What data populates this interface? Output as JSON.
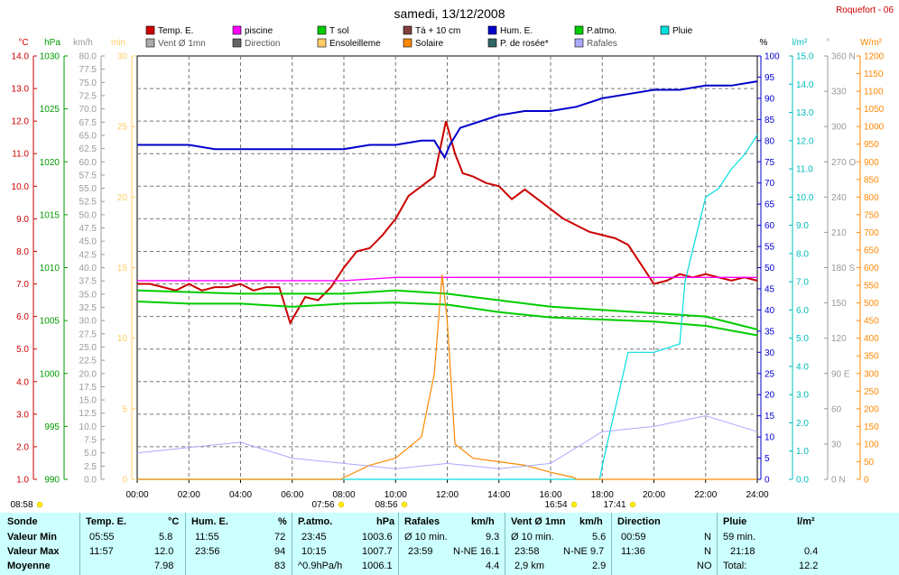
{
  "title": "samedi, 13/12/2008",
  "station": "Roquefort - 06",
  "legend": [
    {
      "label": "Temp. E.",
      "color": "#cc0000"
    },
    {
      "label": "piscine",
      "color": "#ff00ff"
    },
    {
      "label": "T sol",
      "color": "#00cc00"
    },
    {
      "label": "Tà + 10 cm",
      "color": "#804040"
    },
    {
      "label": "Hum. E.",
      "color": "#0000cc"
    },
    {
      "label": "P.atmo.",
      "color": "#00cc00"
    },
    {
      "label": "Pluie",
      "color": "#00dddd"
    },
    {
      "label": "Vent Ø 1mn",
      "color": "#aaaaaa"
    },
    {
      "label": "Direction",
      "color": "#666666"
    },
    {
      "label": "Ensoleilleme",
      "color": "#ffcc66"
    },
    {
      "label": "Solaire",
      "color": "#ff8800"
    },
    {
      "label": "P. de rosée*",
      "color": "#336666"
    },
    {
      "label": "Rafales",
      "color": "#aaaaff"
    }
  ],
  "axis_units": {
    "temp": "°C",
    "press": "hPa",
    "wind": "km/h",
    "min": "min",
    "hum": "%",
    "rain": "l/m²",
    "dir": "°",
    "solar": "W/m²"
  },
  "axis_colors": {
    "temp": "#cc0000",
    "press": "#009900",
    "wind": "#999999",
    "min": "#ffcc66",
    "hum": "#0000cc",
    "rain": "#00bbbb",
    "dir": "#999999",
    "solar": "#ff8800"
  },
  "axis_ticks": {
    "temp": [
      "14.0",
      "13.0",
      "12.0",
      "11.0",
      "10.0",
      "9.0",
      "8.0",
      "7.0",
      "6.0",
      "5.0",
      "4.0",
      "3.0",
      "2.0",
      "1.0"
    ],
    "press": [
      "1030",
      "1025",
      "1020",
      "1015",
      "1010",
      "1005",
      "1000",
      "995",
      "990"
    ],
    "wind": [
      "80.0",
      "77.5",
      "75.0",
      "72.5",
      "70.0",
      "67.5",
      "65.0",
      "62.5",
      "60.0",
      "57.5",
      "55.0",
      "52.5",
      "50.0",
      "47.5",
      "45.0",
      "42.5",
      "40.0",
      "37.5",
      "35.0",
      "32.5",
      "30.0",
      "27.5",
      "25.0",
      "22.5",
      "20.0",
      "17.5",
      "15.0",
      "12.5",
      "10.0",
      "7.5",
      "5.0",
      "2.5",
      "0.0"
    ],
    "min": [
      "30",
      "25",
      "20",
      "15",
      "10",
      "5",
      "0"
    ],
    "hum": [
      "100",
      "95",
      "90",
      "85",
      "80",
      "75",
      "70",
      "65",
      "60",
      "55",
      "50",
      "45",
      "40",
      "35",
      "30",
      "25",
      "20",
      "15",
      "10",
      "5",
      "0"
    ],
    "rain": [
      "15.0",
      "14.0",
      "13.0",
      "12.0",
      "11.0",
      "10.0",
      "9.0",
      "8.0",
      "7.0",
      "6.0",
      "5.0",
      "4.0",
      "3.0",
      "2.0",
      "1.0",
      "0.0"
    ],
    "dir": [
      "360 N",
      "330",
      "300",
      "270 O",
      "240",
      "210",
      "180 S",
      "150",
      "120",
      "90 E",
      "60",
      "30",
      "0 N"
    ],
    "solar": [
      "1200",
      "1150",
      "1100",
      "1050",
      "1000",
      "950",
      "900",
      "850",
      "800",
      "750",
      "700",
      "650",
      "600",
      "550",
      "500",
      "450",
      "400",
      "350",
      "300",
      "250",
      "200",
      "150",
      "100",
      "50",
      "0"
    ]
  },
  "x_ticks": [
    "00:00",
    "02:00",
    "04:00",
    "06:00",
    "08:00",
    "10:00",
    "12:00",
    "14:00",
    "16:00",
    "18:00",
    "20:00",
    "22:00",
    "24:00"
  ],
  "sun_marks": [
    "08:58",
    "07:56",
    "08:56",
    "16:54",
    "17:41"
  ],
  "chart_data": {
    "type": "line",
    "x_unit": "hour",
    "series": [
      {
        "name": "Temp. E.",
        "unit": "°C",
        "x": [
          0,
          0.5,
          1,
          1.5,
          2,
          2.5,
          3,
          3.5,
          4,
          4.5,
          5,
          5.5,
          5.92,
          6.5,
          7,
          7.5,
          8,
          8.5,
          9,
          9.5,
          10,
          10.5,
          11,
          11.5,
          11.95,
          12.3,
          12.6,
          13,
          13.5,
          14,
          14.5,
          15,
          15.5,
          16,
          16.5,
          17,
          17.5,
          18,
          18.5,
          19,
          19.5,
          20,
          20.5,
          21,
          21.5,
          22,
          22.5,
          23,
          23.5,
          24
        ],
        "values": [
          7.0,
          7.0,
          6.9,
          6.8,
          7.0,
          6.8,
          6.9,
          6.9,
          7.0,
          6.8,
          6.9,
          6.9,
          5.8,
          6.6,
          6.5,
          6.9,
          7.5,
          8.0,
          8.1,
          8.5,
          9.0,
          9.7,
          10.0,
          10.3,
          12.0,
          11.0,
          10.4,
          10.3,
          10.1,
          10.0,
          9.6,
          9.9,
          9.6,
          9.3,
          9.0,
          8.8,
          8.6,
          8.5,
          8.4,
          8.2,
          7.6,
          7.0,
          7.1,
          7.3,
          7.2,
          7.3,
          7.2,
          7.1,
          7.2,
          7.1
        ]
      },
      {
        "name": "piscine",
        "unit": "°C",
        "x": [
          0,
          2,
          4,
          6,
          8,
          10,
          12,
          14,
          16,
          18,
          20,
          22,
          24
        ],
        "values": [
          7.1,
          7.1,
          7.1,
          7.1,
          7.1,
          7.2,
          7.2,
          7.2,
          7.2,
          7.2,
          7.2,
          7.2,
          7.2
        ]
      },
      {
        "name": "T sol",
        "unit": "°C",
        "x": [
          0,
          4,
          8,
          10,
          12,
          14,
          16,
          18,
          20,
          22,
          24
        ],
        "values": [
          6.8,
          6.7,
          6.7,
          6.8,
          6.7,
          6.5,
          6.3,
          6.2,
          6.1,
          6.0,
          5.6
        ]
      },
      {
        "name": "Hum. E.",
        "unit": "%",
        "x": [
          0,
          1,
          2,
          3,
          4,
          5,
          6,
          7,
          8,
          9,
          10,
          11,
          11.5,
          11.9,
          12.1,
          12.5,
          13,
          14,
          15,
          16,
          17,
          18,
          19,
          20,
          21,
          22,
          23,
          24
        ],
        "values": [
          79,
          79,
          79,
          78,
          78,
          78,
          78,
          78,
          78,
          79,
          79,
          80,
          80,
          76,
          79,
          83,
          84,
          86,
          87,
          87,
          88,
          90,
          91,
          92,
          92,
          93,
          93,
          94
        ]
      },
      {
        "name": "P.atmo.",
        "unit": "hPa",
        "x": [
          0,
          2,
          4,
          6,
          8,
          10,
          12,
          14,
          16,
          18,
          20,
          22,
          24
        ],
        "values": [
          1006.8,
          1006.6,
          1006.6,
          1006.3,
          1006.6,
          1006.7,
          1006.5,
          1005.8,
          1005.3,
          1005.1,
          1004.9,
          1004.5,
          1003.6
        ]
      },
      {
        "name": "Pluie",
        "unit": "l/m²",
        "x": [
          0,
          17.9,
          18,
          19,
          20,
          21,
          21.2,
          21.6,
          22,
          22.5,
          23,
          23.5,
          24
        ],
        "values": [
          0,
          0,
          0.5,
          4.5,
          4.5,
          4.8,
          7.0,
          8.5,
          10.0,
          10.3,
          11.0,
          11.5,
          12.2
        ]
      },
      {
        "name": "Solaire",
        "unit": "W/m²",
        "x": [
          0,
          7.9,
          8,
          9,
          10,
          11,
          11.5,
          11.8,
          12,
          12.3,
          13,
          14,
          15,
          16,
          16.9,
          17,
          24
        ],
        "values": [
          0,
          0,
          5,
          40,
          60,
          120,
          300,
          580,
          450,
          100,
          60,
          50,
          40,
          20,
          5,
          0,
          0
        ]
      },
      {
        "name": "Rafales",
        "unit": "km/h",
        "x": [
          0,
          2,
          4,
          6,
          8,
          10,
          12,
          14,
          16,
          18,
          20,
          22,
          24
        ],
        "values": [
          5,
          6,
          7,
          4,
          3,
          2,
          3,
          2,
          3,
          9,
          10,
          12,
          9
        ]
      }
    ]
  },
  "stats": {
    "col1": {
      "title": "Sonde",
      "r1": "Valeur Min",
      "r2": "Valeur Max",
      "r3": "Moyenne"
    },
    "col2": {
      "title": "Temp. E.",
      "unit": "°C",
      "min_t": "05:55",
      "min_v": "5.8",
      "max_t": "11:57",
      "max_v": "12.0",
      "avg": "7.98"
    },
    "col3": {
      "title": "Hum. E.",
      "unit": "%",
      "min_t": "11:55",
      "min_v": "72",
      "max_t": "23:56",
      "max_v": "94",
      "avg": "83"
    },
    "col4": {
      "title": "P.atmo.",
      "unit": "hPa",
      "min_t": "23:45",
      "min_v": "1003.6",
      "max_t": "10:15",
      "max_v": "1007.7",
      "trend": "^0.9hPa/h",
      "avg": "1006.1"
    },
    "col5": {
      "title": "Rafales",
      "unit": "km/h",
      "r1a": "Ø 10 min.",
      "r1b": "9.3",
      "r2a": "23:59",
      "r2b": "N-NE 16.1",
      "avg": "4.4"
    },
    "col6": {
      "title": "Vent Ø 1mn",
      "unit": "km/h",
      "r1a": "Ø 10 min.",
      "r1b": "5.6",
      "r2a": "23:58",
      "r2b": "N-NE 9.7",
      "r3a": "2,9 km",
      "r3b": "2.9"
    },
    "col7": {
      "title": "Direction",
      "r1a": "00:59",
      "r1b": "N",
      "r2a": "11:36",
      "r2b": "N",
      "r3b": "NO"
    },
    "col8": {
      "title": "Pluie",
      "unit": "l/m²",
      "r1a": "59 min.",
      "r2a": "21:18",
      "r2b": "0.4",
      "r3a": "Total:",
      "r3b": "12.2"
    }
  }
}
